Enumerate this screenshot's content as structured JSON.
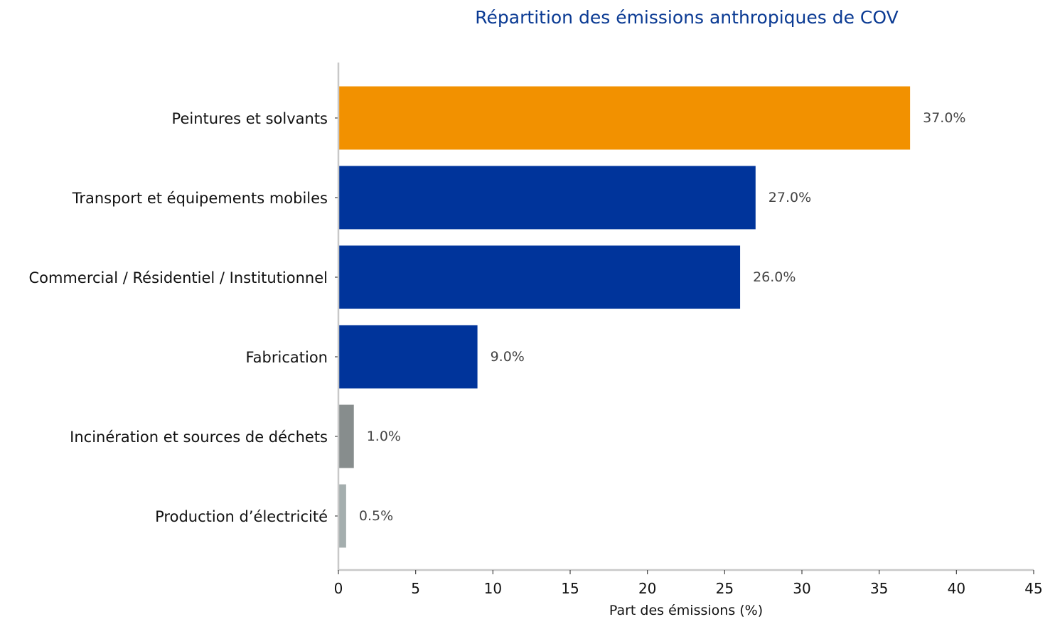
{
  "chart_data": {
    "type": "bar",
    "orientation": "horizontal",
    "title": "Répartition des émissions anthropiques de COV",
    "xlabel": "Part des émissions (%)",
    "ylabel": "",
    "xlim": [
      0,
      45
    ],
    "x_ticks": [
      "0",
      "5",
      "10",
      "15",
      "20",
      "25",
      "30",
      "35",
      "40",
      "45"
    ],
    "categories": [
      "Peintures et solvants",
      "Transport et équipements mobiles",
      "Commercial / Résidentiel / Institutionnel",
      "Fabrication",
      "Incinération et sources de déchets",
      "Production d’électricité"
    ],
    "values": [
      37.0,
      27.0,
      26.0,
      9.0,
      1.0,
      0.5
    ],
    "value_labels": [
      "37.0%",
      "27.0%",
      "26.0%",
      "9.0%",
      "1.0%",
      "0.5%"
    ],
    "bar_colors": [
      "#f29100",
      "#00349b",
      "#00349b",
      "#00349b",
      "#878d8d",
      "#a4aeae"
    ],
    "grid": false,
    "legend": "none"
  }
}
